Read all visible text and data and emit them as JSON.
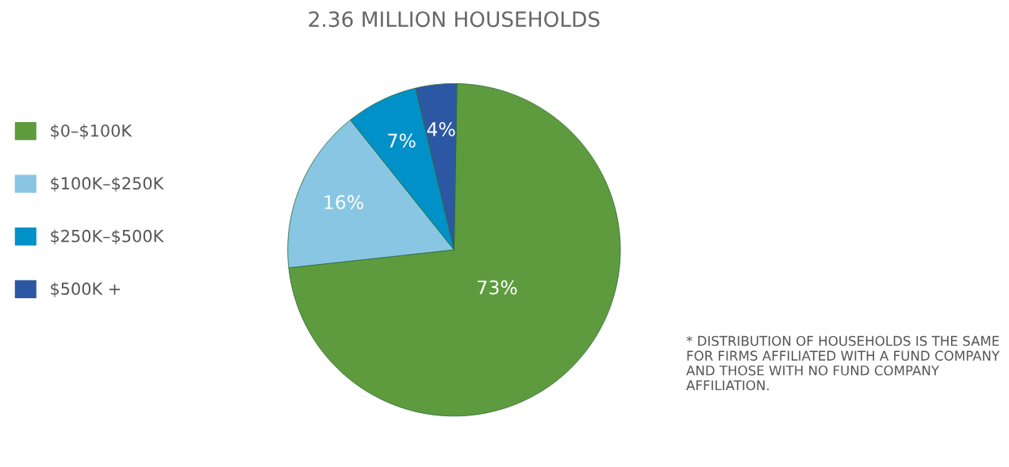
{
  "chart_data": {
    "type": "pie",
    "title": "2.36 MILLION HOUSEHOLDS",
    "categories": [
      "$0–$100K",
      "$100K–$250K",
      "$250K–$500K",
      "$500K +"
    ],
    "values": [
      73,
      16,
      7,
      4
    ],
    "colors": [
      "#5e9b3e",
      "#88c6e3",
      "#0091c8",
      "#2c57a3"
    ],
    "value_labels": [
      "73%",
      "16%",
      "7%",
      "4%"
    ],
    "legend": "left",
    "annotations": [
      "* DISTRIBUTION OF HOUSEHOLDS IS THE SAME FOR FIRMS AFFILIATED WITH A FUND COMPANY AND THOSE WITH NO FUND COMPANY AFFILIATION."
    ]
  }
}
